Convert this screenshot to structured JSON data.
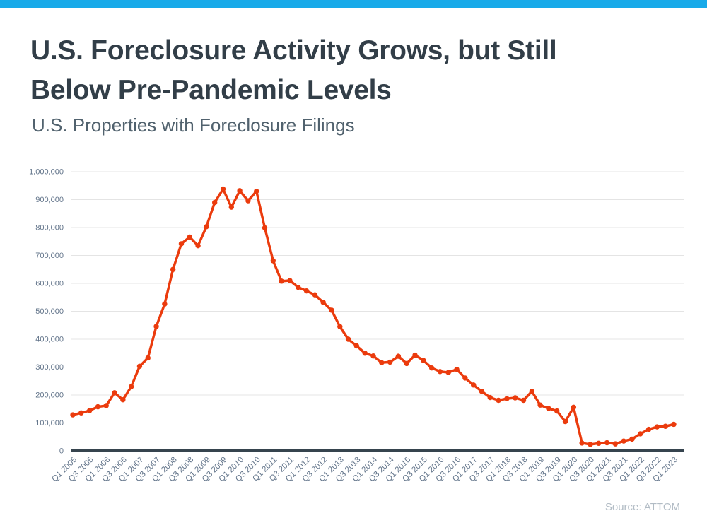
{
  "page": {
    "top_bar_color": "#18aae9",
    "background_color": "#ffffff"
  },
  "header": {
    "title": "U.S. Foreclosure Activity Grows, but Still Below Pre-Pandemic Levels",
    "title_lines": [
      "U.S. Foreclosure Activity Grows, but Still",
      "Below Pre-Pandemic Levels"
    ],
    "subtitle": "U.S. Properties with Foreclosure Filings",
    "title_color": "#323e48",
    "subtitle_color": "#51626e"
  },
  "source": {
    "label": "Source: ATTOM",
    "color": "#b2bcc5"
  },
  "chart_data": {
    "type": "line",
    "title": "U.S. Properties with Foreclosure Filings",
    "categories": [
      "Q1 2005",
      "Q2 2005",
      "Q3 2005",
      "Q4 2005",
      "Q1 2006",
      "Q2 2006",
      "Q3 2006",
      "Q4 2006",
      "Q1 2007",
      "Q2 2007",
      "Q3 2007",
      "Q4 2007",
      "Q1 2008",
      "Q2 2008",
      "Q3 2008",
      "Q4 2008",
      "Q1 2009",
      "Q2 2009",
      "Q3 2009",
      "Q4 2009",
      "Q1 2010",
      "Q2 2010",
      "Q3 2010",
      "Q4 2010",
      "Q1 2011",
      "Q2 2011",
      "Q3 2011",
      "Q4 2011",
      "Q1 2012",
      "Q2 2012",
      "Q3 2012",
      "Q4 2012",
      "Q1 2013",
      "Q2 2013",
      "Q3 2013",
      "Q4 2013",
      "Q1 2014",
      "Q2 2014",
      "Q3 2014",
      "Q4 2014",
      "Q1 2015",
      "Q2 2015",
      "Q3 2015",
      "Q4 2015",
      "Q1 2016",
      "Q2 2016",
      "Q3 2016",
      "Q4 2016",
      "Q1 2017",
      "Q2 2017",
      "Q3 2017",
      "Q4 2017",
      "Q1 2018",
      "Q2 2018",
      "Q3 2018",
      "Q4 2018",
      "Q1 2019",
      "Q2 2019",
      "Q3 2019",
      "Q4 2019",
      "Q1 2020",
      "Q2 2020",
      "Q3 2020",
      "Q4 2020",
      "Q1 2021",
      "Q2 2021",
      "Q3 2021",
      "Q4 2021",
      "Q1 2022",
      "Q2 2022",
      "Q3 2022",
      "Q4 2022",
      "Q1 2023"
    ],
    "values": [
      129000,
      136000,
      144000,
      158000,
      162000,
      208000,
      183000,
      230000,
      303000,
      333000,
      446000,
      526000,
      650000,
      742000,
      766000,
      735000,
      803000,
      890000,
      938000,
      873000,
      932000,
      896000,
      930000,
      799000,
      681000,
      608000,
      610000,
      586000,
      573000,
      559000,
      532000,
      504000,
      445000,
      400000,
      376000,
      350000,
      340000,
      316000,
      318000,
      339000,
      313000,
      343000,
      324000,
      297000,
      284000,
      281000,
      292000,
      261000,
      236000,
      213000,
      191000,
      181000,
      187000,
      190000,
      181000,
      213000,
      164000,
      152000,
      143000,
      105000,
      156000,
      28000,
      23000,
      27000,
      29000,
      25000,
      35000,
      42000,
      61000,
      77000,
      86000,
      88000,
      95000
    ],
    "x_tick_step": 2,
    "ylim": [
      0,
      1000000
    ],
    "y_ticks": [
      0,
      100000,
      200000,
      300000,
      400000,
      500000,
      600000,
      700000,
      800000,
      900000,
      1000000
    ],
    "y_tick_labels": [
      "0",
      "100,000",
      "200,000",
      "300,000",
      "400,000",
      "500,000",
      "600,000",
      "700,000",
      "800,000",
      "900,000",
      "1,000,000"
    ],
    "grid": true,
    "legend": "none",
    "line_color": "#eb3b0d",
    "marker_color": "#eb3b0d",
    "axis_color": "#36444e",
    "gridline_color": "#e4e4e4",
    "tick_label_color": "#62748a"
  }
}
